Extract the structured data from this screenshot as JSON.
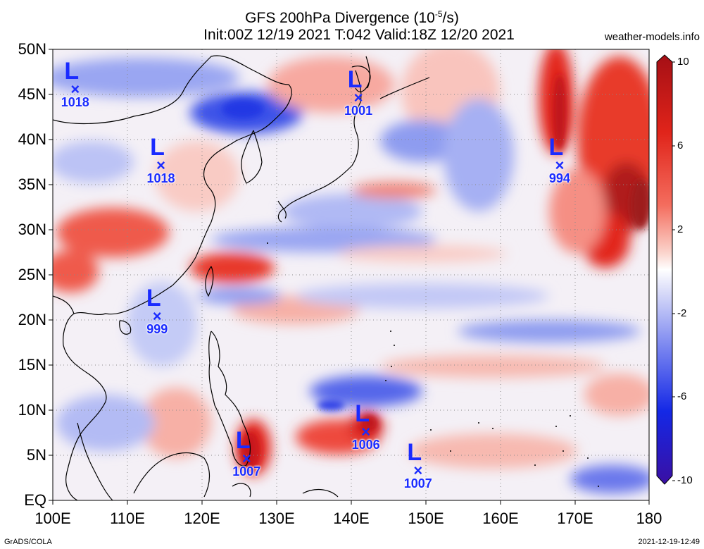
{
  "header": {
    "title_line1_prefix": "GFS 200hPa Divergence (10",
    "title_line1_sup": "-5",
    "title_line1_suffix": "/s)",
    "title_line2": "Init:00Z 12/19 2021 T:042 Valid:18Z 12/20 2021",
    "site": "weather-models.info"
  },
  "footer": {
    "left": "GrADS/COLA",
    "right": "2021-12-19-12:49"
  },
  "axes": {
    "lat_labels": [
      "50N",
      "45N",
      "40N",
      "35N",
      "30N",
      "25N",
      "20N",
      "15N",
      "10N",
      "5N",
      "EQ"
    ],
    "lon_labels": [
      "100E",
      "110E",
      "120E",
      "130E",
      "140E",
      "150E",
      "160E",
      "170E",
      "180"
    ],
    "lat_range": [
      0,
      50
    ],
    "lon_range": [
      100,
      180
    ]
  },
  "colorbar": {
    "labels": [
      "10",
      "6",
      "2",
      "-2",
      "-6",
      "-10"
    ],
    "colors": [
      "#a50f15",
      "#e0241a",
      "#f46d5e",
      "#fbbcb1",
      "#ffffff",
      "#c4c8f7",
      "#7a86f0",
      "#1428e6",
      "#3a0fa3"
    ]
  },
  "lows": [
    {
      "pressure": "1018",
      "lon": 103,
      "lat": 45.5
    },
    {
      "pressure": "1018",
      "lon": 114.5,
      "lat": 37
    },
    {
      "pressure": "999",
      "lon": 114,
      "lat": 20.3
    },
    {
      "pressure": "1001",
      "lon": 141,
      "lat": 44.5
    },
    {
      "pressure": "994",
      "lon": 168,
      "lat": 37
    },
    {
      "pressure": "1006",
      "lon": 142,
      "lat": 7.5
    },
    {
      "pressure": "1007",
      "lon": 126,
      "lat": 4.5
    },
    {
      "pressure": "1007",
      "lon": 149,
      "lat": 3.2
    }
  ],
  "colors": {
    "marker": "#1a2bff",
    "coast": "#000000",
    "grid": "#888888"
  }
}
